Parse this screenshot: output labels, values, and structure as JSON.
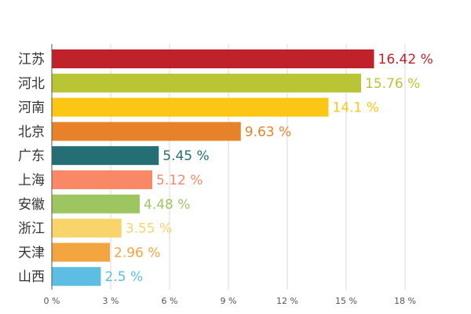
{
  "chart_data": {
    "type": "bar",
    "orientation": "horizontal",
    "categories": [
      "江苏",
      "河北",
      "河南",
      "北京",
      "广东",
      "上海",
      "安徽",
      "浙江",
      "天津",
      "山西"
    ],
    "values": [
      16.42,
      15.76,
      14.1,
      9.63,
      5.45,
      5.12,
      4.48,
      3.55,
      2.96,
      2.5
    ],
    "value_labels": [
      "16.42 %",
      "15.76 %",
      "14.1 %",
      "9.63 %",
      "5.45 %",
      "5.12 %",
      "4.48 %",
      "3.55 %",
      "2.96 %",
      "2.5 %"
    ],
    "colors": [
      "#c0222b",
      "#b9c534",
      "#fbc614",
      "#e8822a",
      "#236f74",
      "#f98867",
      "#9dc660",
      "#f8d46a",
      "#f3a540",
      "#5dbde3"
    ],
    "xlim": [
      0,
      18
    ],
    "xticks": [
      0,
      3,
      6,
      9,
      12,
      15,
      18
    ],
    "xtick_labels": [
      "0 %",
      "3 %",
      "6 %",
      "9 %",
      "12 %",
      "15 %",
      "18 %"
    ],
    "grid": true
  }
}
